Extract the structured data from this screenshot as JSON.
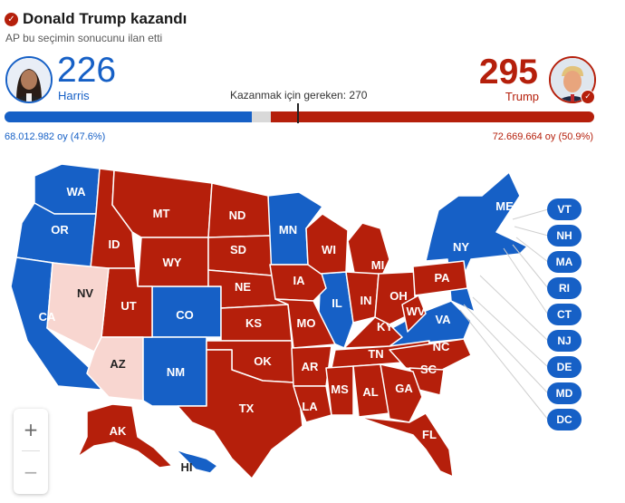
{
  "header": {
    "title": "Donald Trump kazandı",
    "subtitle": "AP bu seçimin sonucunu ilan etti",
    "threshold_label": "Kazanmak için gereken: 270",
    "check_icon": "check-circle-icon"
  },
  "candidates": {
    "harris": {
      "name": "Harris",
      "electoral_votes": "226",
      "popular_vote": "68.012.982 oy (47.6%)",
      "color": "#1660c6"
    },
    "trump": {
      "name": "Trump",
      "electoral_votes": "295",
      "popular_vote": "72.669.664 oy (50.9%)",
      "color": "#b51f0b"
    }
  },
  "bar": {
    "total": 538,
    "harris": 226,
    "trump": 295,
    "threshold": 270
  },
  "colors": {
    "dem": "#1660c6",
    "rep": "#b51f0b",
    "rep_light": "#f8d6d0",
    "undecided": "#d9d9d9"
  },
  "states": {
    "WA": "WA",
    "OR": "OR",
    "CA": "CA",
    "NV": "NV",
    "ID": "ID",
    "MT": "MT",
    "WY": "WY",
    "UT": "UT",
    "AZ": "AZ",
    "CO": "CO",
    "NM": "NM",
    "ND": "ND",
    "SD": "SD",
    "NE": "NE",
    "KS": "KS",
    "OK": "OK",
    "TX": "TX",
    "MN": "MN",
    "IA": "IA",
    "MO": "MO",
    "AR": "AR",
    "LA": "LA",
    "WI": "WI",
    "IL": "IL",
    "MI": "MI",
    "IN": "IN",
    "OH": "OH",
    "KY": "KY",
    "TN": "TN",
    "MS": "MS",
    "AL": "AL",
    "GA": "GA",
    "FL": "FL",
    "SC": "SC",
    "NC": "NC",
    "VA": "VA",
    "WV": "WV",
    "PA": "PA",
    "NY": "NY",
    "ME": "ME",
    "AK": "AK",
    "HI": "HI"
  },
  "small_states": [
    "VT",
    "NH",
    "MA",
    "RI",
    "CT",
    "NJ",
    "DE",
    "MD",
    "DC"
  ],
  "zoom": {
    "in_label": "+",
    "out_label": "−"
  }
}
